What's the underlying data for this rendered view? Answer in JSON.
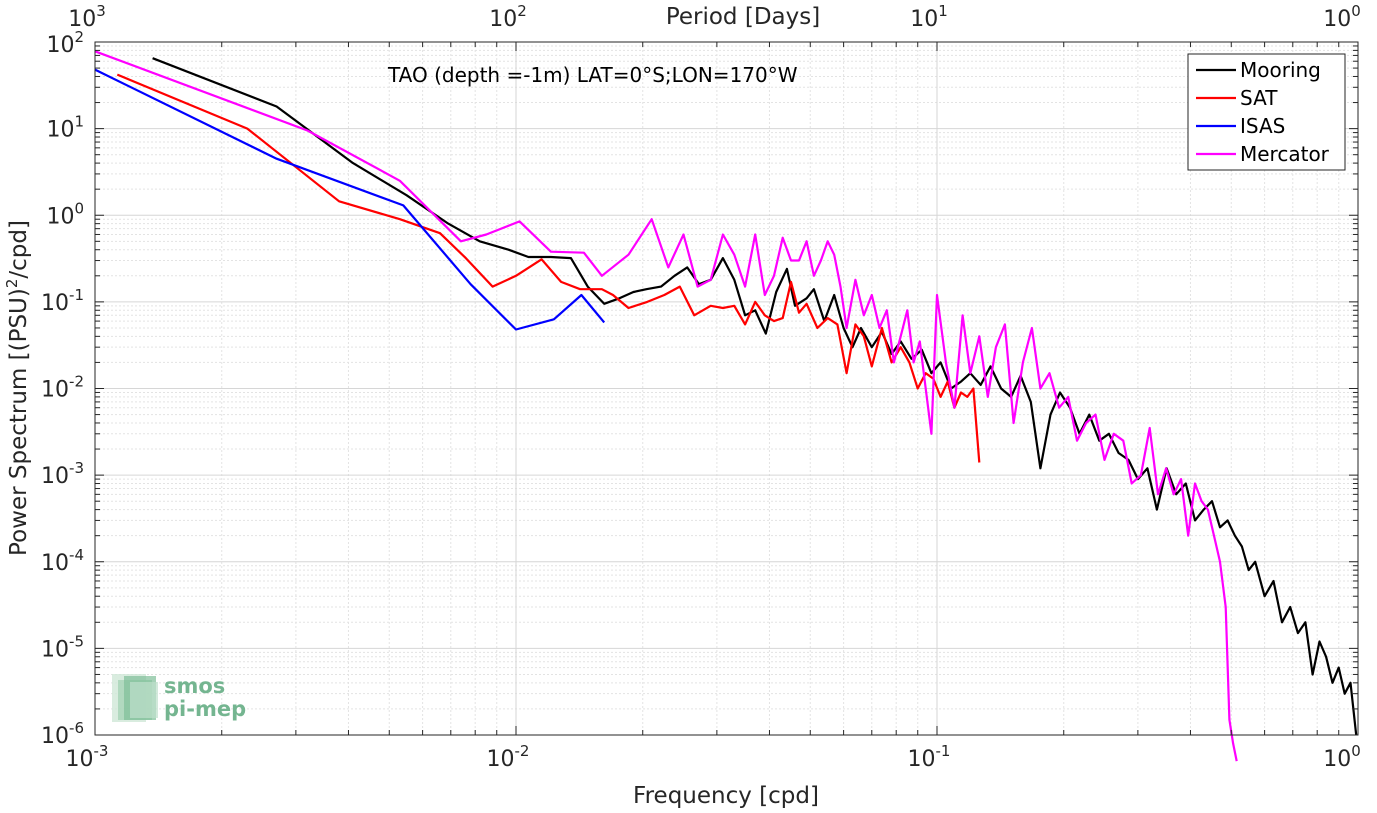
{
  "chart_data": {
    "type": "line",
    "xscale": "log",
    "yscale": "log",
    "xlim": [
      0.001,
      1
    ],
    "ylim": [
      1e-06,
      100
    ],
    "grid": true,
    "xlabel": "Frequency [cpd]",
    "ylabel_main": "Power Spectrum [(PSU)",
    "ylabel_sup": "2",
    "ylabel_tail": "/cpd]",
    "top_axis_label": "Period [Days]",
    "annotation": "TAO (depth =-1m) LAT=0°S;LON=170°W",
    "legend_position": "top-right",
    "x_ticks": [
      {
        "value": 0.001,
        "base": "10",
        "exp": "-3"
      },
      {
        "value": 0.01,
        "base": "10",
        "exp": "-2"
      },
      {
        "value": 0.1,
        "base": "10",
        "exp": "-1"
      },
      {
        "value": 1,
        "base": "10",
        "exp": "0"
      }
    ],
    "top_ticks": [
      {
        "value": 0.001,
        "base": "10",
        "exp": "3"
      },
      {
        "value": 0.01,
        "base": "10",
        "exp": "2"
      },
      {
        "value": 0.1,
        "base": "10",
        "exp": "1"
      },
      {
        "value": 1,
        "base": "10",
        "exp": "0"
      }
    ],
    "y_ticks": [
      {
        "value": 100,
        "base": "10",
        "exp": "2"
      },
      {
        "value": 10,
        "base": "10",
        "exp": "1"
      },
      {
        "value": 1,
        "base": "10",
        "exp": "0"
      },
      {
        "value": 0.1,
        "base": "10",
        "exp": "-1"
      },
      {
        "value": 0.01,
        "base": "10",
        "exp": "-2"
      },
      {
        "value": 0.001,
        "base": "10",
        "exp": "-3"
      },
      {
        "value": 0.0001,
        "base": "10",
        "exp": "-4"
      },
      {
        "value": 1e-05,
        "base": "10",
        "exp": "-5"
      },
      {
        "value": 1e-06,
        "base": "10",
        "exp": "-6"
      }
    ],
    "series": [
      {
        "name": "Mooring",
        "color": "#000000",
        "x": [
          0.00137,
          0.0027,
          0.0041,
          0.0055,
          0.0069,
          0.0082,
          0.0096,
          0.0107,
          0.0121,
          0.0135,
          0.0148,
          0.0162,
          0.0176,
          0.019,
          0.0204,
          0.0221,
          0.0238,
          0.0255,
          0.0272,
          0.029,
          0.031,
          0.033,
          0.035,
          0.037,
          0.0392,
          0.0415,
          0.044,
          0.046,
          0.049,
          0.051,
          0.054,
          0.057,
          0.06,
          0.063,
          0.066,
          0.07,
          0.074,
          0.078,
          0.082,
          0.087,
          0.092,
          0.097,
          0.102,
          0.108,
          0.114,
          0.12,
          0.127,
          0.134,
          0.142,
          0.15,
          0.158,
          0.167,
          0.176,
          0.186,
          0.196,
          0.207,
          0.218,
          0.23,
          0.243,
          0.256,
          0.27,
          0.285,
          0.3,
          0.316,
          0.333,
          0.351,
          0.37,
          0.39,
          0.41,
          0.43,
          0.45,
          0.47,
          0.49,
          0.51,
          0.53,
          0.55,
          0.57,
          0.6,
          0.63,
          0.66,
          0.69,
          0.72,
          0.75,
          0.78,
          0.81,
          0.84,
          0.87,
          0.9,
          0.93,
          0.96,
          0.99
        ],
        "y": [
          65,
          18,
          4,
          1.7,
          0.8,
          0.5,
          0.4,
          0.33,
          0.33,
          0.32,
          0.15,
          0.095,
          0.11,
          0.13,
          0.14,
          0.15,
          0.2,
          0.25,
          0.16,
          0.18,
          0.32,
          0.18,
          0.07,
          0.08,
          0.043,
          0.13,
          0.24,
          0.09,
          0.11,
          0.14,
          0.06,
          0.12,
          0.05,
          0.03,
          0.05,
          0.03,
          0.045,
          0.025,
          0.035,
          0.022,
          0.028,
          0.015,
          0.02,
          0.01,
          0.012,
          0.015,
          0.011,
          0.018,
          0.01,
          0.008,
          0.014,
          0.007,
          0.0012,
          0.005,
          0.009,
          0.006,
          0.003,
          0.005,
          0.0025,
          0.003,
          0.0018,
          0.0015,
          0.0009,
          0.0012,
          0.0004,
          0.0012,
          0.0006,
          0.0008,
          0.0003,
          0.0004,
          0.0005,
          0.00025,
          0.0003,
          0.0002,
          0.00015,
          8e-05,
          0.0001,
          4e-05,
          6e-05,
          2e-05,
          3e-05,
          1.5e-05,
          2e-05,
          5e-06,
          1.2e-05,
          8e-06,
          4e-06,
          6e-06,
          3e-06,
          4e-06,
          1e-06
        ]
      },
      {
        "name": "SAT",
        "color": "#ff0000",
        "x": [
          0.00113,
          0.0023,
          0.0038,
          0.0053,
          0.0066,
          0.0076,
          0.0088,
          0.01,
          0.0115,
          0.0128,
          0.0142,
          0.016,
          0.017,
          0.0185,
          0.0205,
          0.0225,
          0.0245,
          0.0265,
          0.029,
          0.031,
          0.033,
          0.035,
          0.037,
          0.039,
          0.041,
          0.043,
          0.045,
          0.047,
          0.049,
          0.052,
          0.055,
          0.058,
          0.061,
          0.064,
          0.067,
          0.07,
          0.074,
          0.078,
          0.082,
          0.086,
          0.09,
          0.094,
          0.098,
          0.102,
          0.106,
          0.11,
          0.114,
          0.118,
          0.122,
          0.126
        ],
        "y": [
          42,
          10,
          1.45,
          0.9,
          0.62,
          0.32,
          0.15,
          0.2,
          0.31,
          0.17,
          0.14,
          0.14,
          0.12,
          0.085,
          0.1,
          0.12,
          0.15,
          0.07,
          0.09,
          0.085,
          0.09,
          0.055,
          0.1,
          0.07,
          0.06,
          0.065,
          0.17,
          0.075,
          0.095,
          0.05,
          0.065,
          0.055,
          0.015,
          0.055,
          0.04,
          0.018,
          0.05,
          0.02,
          0.03,
          0.02,
          0.01,
          0.015,
          0.013,
          0.008,
          0.012,
          0.006,
          0.009,
          0.008,
          0.01,
          0.0014
        ]
      },
      {
        "name": "ISAS",
        "color": "#0000ff",
        "x": [
          0.001,
          0.0027,
          0.0054,
          0.0078,
          0.01,
          0.0123,
          0.0143,
          0.0162
        ],
        "y": [
          48,
          4.5,
          1.3,
          0.16,
          0.048,
          0.063,
          0.12,
          0.058
        ]
      },
      {
        "name": "Mercator",
        "color": "#ff00ff",
        "x": [
          0.001,
          0.0032,
          0.0053,
          0.0074,
          0.0085,
          0.0102,
          0.0121,
          0.0145,
          0.016,
          0.0185,
          0.021,
          0.023,
          0.025,
          0.027,
          0.029,
          0.031,
          0.033,
          0.035,
          0.037,
          0.039,
          0.041,
          0.043,
          0.045,
          0.047,
          0.049,
          0.051,
          0.053,
          0.055,
          0.057,
          0.059,
          0.061,
          0.064,
          0.067,
          0.07,
          0.073,
          0.076,
          0.079,
          0.082,
          0.085,
          0.088,
          0.091,
          0.094,
          0.097,
          0.1,
          0.105,
          0.11,
          0.115,
          0.12,
          0.126,
          0.132,
          0.138,
          0.145,
          0.152,
          0.16,
          0.168,
          0.176,
          0.185,
          0.195,
          0.205,
          0.215,
          0.226,
          0.238,
          0.25,
          0.263,
          0.277,
          0.29,
          0.305,
          0.32,
          0.335,
          0.35,
          0.365,
          0.38,
          0.395,
          0.41,
          0.425,
          0.44,
          0.455,
          0.47,
          0.485,
          0.495,
          0.505,
          0.515
        ],
        "y": [
          78,
          9.5,
          2.5,
          0.5,
          0.6,
          0.85,
          0.38,
          0.37,
          0.2,
          0.35,
          0.9,
          0.25,
          0.6,
          0.15,
          0.18,
          0.6,
          0.35,
          0.15,
          0.6,
          0.12,
          0.2,
          0.55,
          0.3,
          0.3,
          0.5,
          0.2,
          0.3,
          0.5,
          0.35,
          0.15,
          0.05,
          0.18,
          0.07,
          0.12,
          0.05,
          0.08,
          0.02,
          0.04,
          0.08,
          0.02,
          0.035,
          0.01,
          0.003,
          0.12,
          0.02,
          0.006,
          0.07,
          0.015,
          0.04,
          0.008,
          0.03,
          0.055,
          0.004,
          0.02,
          0.05,
          0.01,
          0.015,
          0.006,
          0.008,
          0.0025,
          0.004,
          0.005,
          0.0015,
          0.003,
          0.0025,
          0.0008,
          0.001,
          0.0035,
          0.0006,
          0.0012,
          0.0006,
          0.0009,
          0.0002,
          0.0008,
          0.0005,
          0.0004,
          0.0002,
          0.0001,
          3e-05,
          1.5e-06,
          8e-07,
          5e-07
        ]
      }
    ]
  },
  "watermark": {
    "line1": "smos",
    "line2": "pi-mep"
  }
}
